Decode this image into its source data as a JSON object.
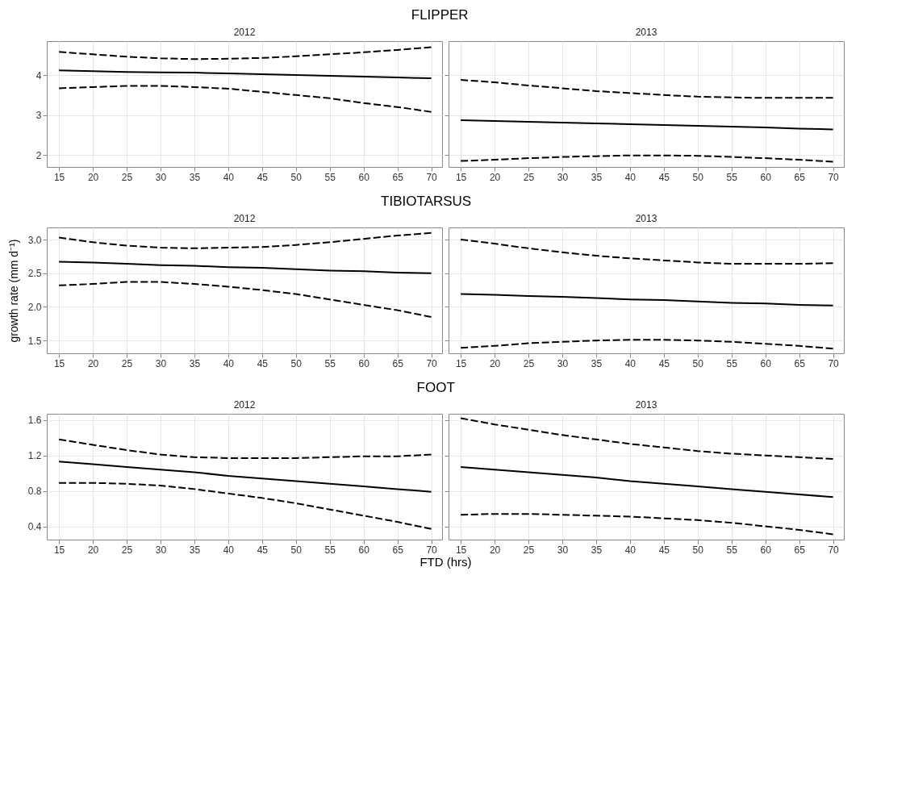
{
  "chart_data": [
    {
      "type": "line",
      "title": "FLIPPER",
      "subtitle": "2012",
      "x": [
        15,
        20,
        25,
        30,
        35,
        40,
        45,
        50,
        55,
        60,
        65,
        70
      ],
      "xlim": [
        13.2,
        71.6
      ],
      "xticks": [
        15,
        20,
        25,
        30,
        35,
        40,
        45,
        50,
        55,
        60,
        65,
        70
      ],
      "ylim": [
        1.7,
        4.85
      ],
      "yticks": [
        2,
        3,
        4
      ],
      "grid": true,
      "series": [
        {
          "color": "#000000",
          "line_style": "dashed",
          "values": [
            4.58,
            4.52,
            4.46,
            4.42,
            4.4,
            4.41,
            4.43,
            4.47,
            4.52,
            4.57,
            4.63,
            4.7
          ]
        },
        {
          "color": "#000000",
          "line_style": "solid",
          "values": [
            4.12,
            4.1,
            4.08,
            4.07,
            4.06,
            4.04,
            4.02,
            4.0,
            3.98,
            3.96,
            3.94,
            3.92
          ]
        },
        {
          "color": "#000000",
          "line_style": "dashed",
          "values": [
            3.67,
            3.7,
            3.73,
            3.73,
            3.7,
            3.66,
            3.58,
            3.5,
            3.42,
            3.3,
            3.2,
            3.08
          ]
        }
      ]
    },
    {
      "type": "line",
      "subtitle": "2013",
      "x": [
        15,
        20,
        25,
        30,
        35,
        40,
        45,
        50,
        55,
        60,
        65,
        70
      ],
      "xlim": [
        13.2,
        71.6
      ],
      "xticks": [
        15,
        20,
        25,
        30,
        35,
        40,
        45,
        50,
        55,
        60,
        65,
        70
      ],
      "ylim": [
        1.7,
        4.85
      ],
      "yticks": [
        2,
        3,
        4
      ],
      "grid": true,
      "tick_labels": "x",
      "series": [
        {
          "color": "#000000",
          "line_style": "dashed",
          "values": [
            3.88,
            3.82,
            3.74,
            3.67,
            3.6,
            3.55,
            3.5,
            3.46,
            3.44,
            3.43,
            3.43,
            3.43
          ]
        },
        {
          "color": "#000000",
          "line_style": "solid",
          "values": [
            2.87,
            2.85,
            2.83,
            2.81,
            2.79,
            2.77,
            2.75,
            2.73,
            2.71,
            2.69,
            2.66,
            2.64
          ]
        },
        {
          "color": "#000000",
          "line_style": "dashed",
          "values": [
            1.85,
            1.88,
            1.92,
            1.95,
            1.97,
            1.99,
            1.99,
            1.98,
            1.95,
            1.92,
            1.88,
            1.83
          ]
        }
      ]
    },
    {
      "type": "line",
      "title": "TIBIOTARSUS",
      "subtitle": "2012",
      "ylabel": "growth rate (mm d⁻¹)",
      "x": [
        15,
        20,
        25,
        30,
        35,
        40,
        45,
        50,
        55,
        60,
        65,
        70
      ],
      "xlim": [
        13.2,
        71.6
      ],
      "xticks": [
        15,
        20,
        25,
        30,
        35,
        40,
        45,
        50,
        55,
        60,
        65,
        70
      ],
      "ylim": [
        1.31,
        3.18
      ],
      "yticks": [
        1.5,
        {
          "value": 2,
          "label": "2.0"
        },
        2.5,
        {
          "value": 3,
          "label": "3.0"
        }
      ],
      "grid": true,
      "series": [
        {
          "color": "#000000",
          "line_style": "dashed",
          "values": [
            3.03,
            2.96,
            2.91,
            2.88,
            2.87,
            2.88,
            2.89,
            2.92,
            2.96,
            3.01,
            3.06,
            3.1
          ]
        },
        {
          "color": "#000000",
          "line_style": "solid",
          "values": [
            2.67,
            2.66,
            2.64,
            2.62,
            2.61,
            2.59,
            2.58,
            2.56,
            2.54,
            2.53,
            2.51,
            2.5
          ]
        },
        {
          "color": "#000000",
          "line_style": "dashed",
          "values": [
            2.32,
            2.34,
            2.37,
            2.37,
            2.34,
            2.3,
            2.25,
            2.19,
            2.11,
            2.03,
            1.95,
            1.85
          ]
        }
      ]
    },
    {
      "type": "line",
      "subtitle": "2013",
      "x": [
        15,
        20,
        25,
        30,
        35,
        40,
        45,
        50,
        55,
        60,
        65,
        70
      ],
      "xlim": [
        13.2,
        71.6
      ],
      "xticks": [
        15,
        20,
        25,
        30,
        35,
        40,
        45,
        50,
        55,
        60,
        65,
        70
      ],
      "ylim": [
        1.31,
        3.18
      ],
      "yticks": [
        1.5,
        2,
        2.5,
        3
      ],
      "grid": true,
      "tick_labels": "x",
      "series": [
        {
          "color": "#000000",
          "line_style": "dashed",
          "values": [
            3.0,
            2.94,
            2.87,
            2.81,
            2.76,
            2.72,
            2.69,
            2.66,
            2.64,
            2.64,
            2.64,
            2.65
          ]
        },
        {
          "color": "#000000",
          "line_style": "solid",
          "values": [
            2.19,
            2.18,
            2.16,
            2.15,
            2.13,
            2.11,
            2.1,
            2.08,
            2.06,
            2.05,
            2.03,
            2.02
          ]
        },
        {
          "color": "#000000",
          "line_style": "dashed",
          "values": [
            1.39,
            1.42,
            1.46,
            1.48,
            1.5,
            1.51,
            1.51,
            1.5,
            1.48,
            1.45,
            1.42,
            1.38
          ]
        }
      ]
    },
    {
      "type": "line",
      "title": "FOOT",
      "subtitle": "2012",
      "xlabel": "FTD (hrs)",
      "x": [
        15,
        20,
        25,
        30,
        35,
        40,
        45,
        50,
        55,
        60,
        65,
        70
      ],
      "xlim": [
        13.2,
        71.6
      ],
      "xticks": [
        15,
        20,
        25,
        30,
        35,
        40,
        45,
        50,
        55,
        60,
        65,
        70
      ],
      "ylim": [
        0.25,
        1.67
      ],
      "yticks": [
        0.4,
        0.8,
        1.2,
        1.6
      ],
      "grid": true,
      "series": [
        {
          "color": "#000000",
          "line_style": "dashed",
          "values": [
            1.38,
            1.32,
            1.26,
            1.21,
            1.18,
            1.17,
            1.17,
            1.17,
            1.18,
            1.19,
            1.19,
            1.21
          ]
        },
        {
          "color": "#000000",
          "line_style": "solid",
          "values": [
            1.13,
            1.1,
            1.07,
            1.04,
            1.01,
            0.97,
            0.94,
            0.91,
            0.88,
            0.85,
            0.82,
            0.79
          ]
        },
        {
          "color": "#000000",
          "line_style": "dashed",
          "values": [
            0.89,
            0.89,
            0.88,
            0.86,
            0.82,
            0.77,
            0.72,
            0.66,
            0.59,
            0.52,
            0.45,
            0.37
          ]
        }
      ]
    },
    {
      "type": "line",
      "subtitle": "2013",
      "x": [
        15,
        20,
        25,
        30,
        35,
        40,
        45,
        50,
        55,
        60,
        65,
        70
      ],
      "xlim": [
        13.2,
        71.6
      ],
      "xticks": [
        15,
        20,
        25,
        30,
        35,
        40,
        45,
        50,
        55,
        60,
        65,
        70
      ],
      "ylim": [
        0.25,
        1.67
      ],
      "yticks": [
        0.4,
        0.8,
        1.2,
        1.6
      ],
      "grid": true,
      "tick_labels": "x",
      "series": [
        {
          "color": "#000000",
          "line_style": "dashed",
          "values": [
            1.62,
            1.55,
            1.49,
            1.43,
            1.38,
            1.33,
            1.29,
            1.25,
            1.22,
            1.2,
            1.18,
            1.16
          ]
        },
        {
          "color": "#000000",
          "line_style": "solid",
          "values": [
            1.07,
            1.04,
            1.01,
            0.98,
            0.95,
            0.91,
            0.88,
            0.85,
            0.82,
            0.79,
            0.76,
            0.73
          ]
        },
        {
          "color": "#000000",
          "line_style": "dashed",
          "values": [
            0.53,
            0.54,
            0.54,
            0.53,
            0.52,
            0.51,
            0.49,
            0.47,
            0.44,
            0.4,
            0.36,
            0.31
          ]
        }
      ]
    }
  ]
}
